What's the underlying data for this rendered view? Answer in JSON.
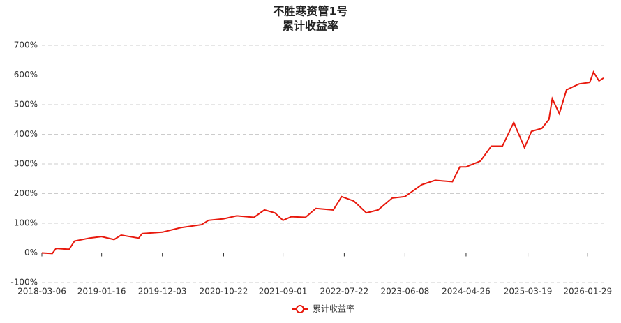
{
  "chart_data": {
    "type": "line",
    "title": "不胜寒资管1号",
    "subtitle": "累计收益率",
    "x": [
      "2018-03-06",
      "2018-04-30",
      "2018-05-20",
      "2018-07-28",
      "2018-08-26",
      "2018-11-14",
      "2019-01-16",
      "2019-03-23",
      "2019-04-29",
      "2019-07-31",
      "2019-08-18",
      "2019-12-03",
      "2020-03-08",
      "2020-06-27",
      "2020-08-03",
      "2020-10-22",
      "2020-12-30",
      "2021-04-01",
      "2021-05-26",
      "2021-07-20",
      "2021-09-01",
      "2021-10-15",
      "2021-12-29",
      "2022-02-22",
      "2022-05-25",
      "2022-07-08",
      "2022-09-10",
      "2022-11-16",
      "2023-01-17",
      "2023-04-01",
      "2023-06-08",
      "2023-09-04",
      "2023-11-15",
      "2024-02-14",
      "2024-03-24",
      "2024-04-26",
      "2024-07-11",
      "2024-09-06",
      "2024-11-04",
      "2025-01-03",
      "2025-03-01",
      "2025-04-07",
      "2025-06-01",
      "2025-07-08",
      "2025-07-26",
      "2025-09-01",
      "2025-10-09",
      "2025-12-14",
      "2026-02-09",
      "2026-03-01",
      "2026-03-30",
      "2026-04-23"
    ],
    "series": [
      {
        "name": "累计收益率",
        "color": "#e8190d",
        "values": [
          0,
          -2,
          15,
          12,
          40,
          50,
          55,
          45,
          60,
          50,
          65,
          70,
          85,
          95,
          110,
          115,
          125,
          120,
          145,
          135,
          110,
          122,
          120,
          150,
          145,
          190,
          175,
          135,
          145,
          185,
          190,
          230,
          245,
          240,
          290,
          290,
          310,
          360,
          360,
          440,
          355,
          410,
          420,
          450,
          520,
          470,
          550,
          570,
          575,
          610,
          580,
          590
        ]
      }
    ],
    "xlim": [
      "2018-03-06",
      "2026-04-23"
    ],
    "xticks": [
      "2018-03-06",
      "2019-01-16",
      "2019-12-03",
      "2020-10-22",
      "2021-09-01",
      "2022-07-22",
      "2023-06-08",
      "2024-04-26",
      "2025-03-19",
      "2026-01-29"
    ],
    "ylim": [
      -100,
      700
    ],
    "yticks": [
      {
        "value": -100,
        "label": "-100%"
      },
      {
        "value": 0,
        "label": "0%"
      },
      {
        "value": 100,
        "label": "100%"
      },
      {
        "value": 200,
        "label": "200%"
      },
      {
        "value": 300,
        "label": "300%"
      },
      {
        "value": 400,
        "label": "400%"
      },
      {
        "value": 500,
        "label": "500%"
      },
      {
        "value": 600,
        "label": "600%"
      },
      {
        "value": 700,
        "label": "700%"
      }
    ],
    "grid": true
  }
}
